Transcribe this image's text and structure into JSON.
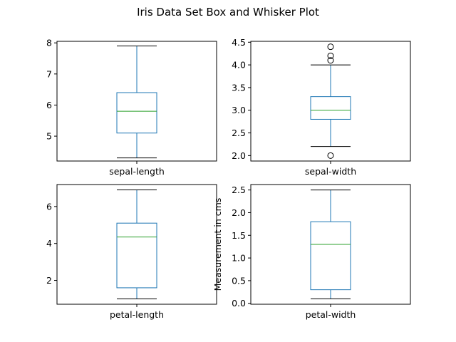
{
  "figure": {
    "title": "Iris Data Set Box and Whisker Plot"
  },
  "colors": {
    "box": "#1f77b4",
    "median": "#2ca02c",
    "whisker": "#1f77b4",
    "cap": "#000000",
    "flier": "#000000"
  },
  "chart_data": [
    {
      "type": "box",
      "category": "sepal-length",
      "ylabel": "",
      "ylim": [
        4.2,
        8.05
      ],
      "yticks": [
        5,
        6,
        7,
        8
      ],
      "tick_labels": [
        "5",
        "6",
        "7",
        "8"
      ],
      "stats": {
        "whislo": 4.3,
        "q1": 5.1,
        "med": 5.8,
        "q3": 6.4,
        "whishi": 7.9
      },
      "fliers": [],
      "grid": false
    },
    {
      "type": "box",
      "category": "sepal-width",
      "ylabel": "",
      "ylim": [
        1.88,
        4.52
      ],
      "yticks": [
        2.0,
        2.5,
        3.0,
        3.5,
        4.0,
        4.5
      ],
      "tick_labels": [
        "2.0",
        "2.5",
        "3.0",
        "3.5",
        "4.0",
        "4.5"
      ],
      "stats": {
        "whislo": 2.2,
        "q1": 2.8,
        "med": 3.0,
        "q3": 3.3,
        "whishi": 4.0
      },
      "fliers": [
        4.4,
        4.2,
        4.1,
        2.0
      ],
      "grid": false
    },
    {
      "type": "box",
      "category": "petal-length",
      "ylabel": "",
      "ylim": [
        0.71,
        7.19
      ],
      "yticks": [
        2,
        4,
        6
      ],
      "tick_labels": [
        "2",
        "4",
        "6"
      ],
      "stats": {
        "whislo": 1.0,
        "q1": 1.6,
        "med": 4.35,
        "q3": 5.1,
        "whishi": 6.9
      },
      "fliers": [],
      "grid": false
    },
    {
      "type": "box",
      "category": "petal-width",
      "ylabel": "Measurement in cms",
      "ylim": [
        -0.02,
        2.62
      ],
      "yticks": [
        0.0,
        0.5,
        1.0,
        1.5,
        2.0,
        2.5
      ],
      "tick_labels": [
        "0.0",
        "0.5",
        "1.0",
        "1.5",
        "2.0",
        "2.5"
      ],
      "stats": {
        "whislo": 0.1,
        "q1": 0.3,
        "med": 1.3,
        "q3": 1.8,
        "whishi": 2.5
      },
      "fliers": [],
      "grid": false
    }
  ]
}
